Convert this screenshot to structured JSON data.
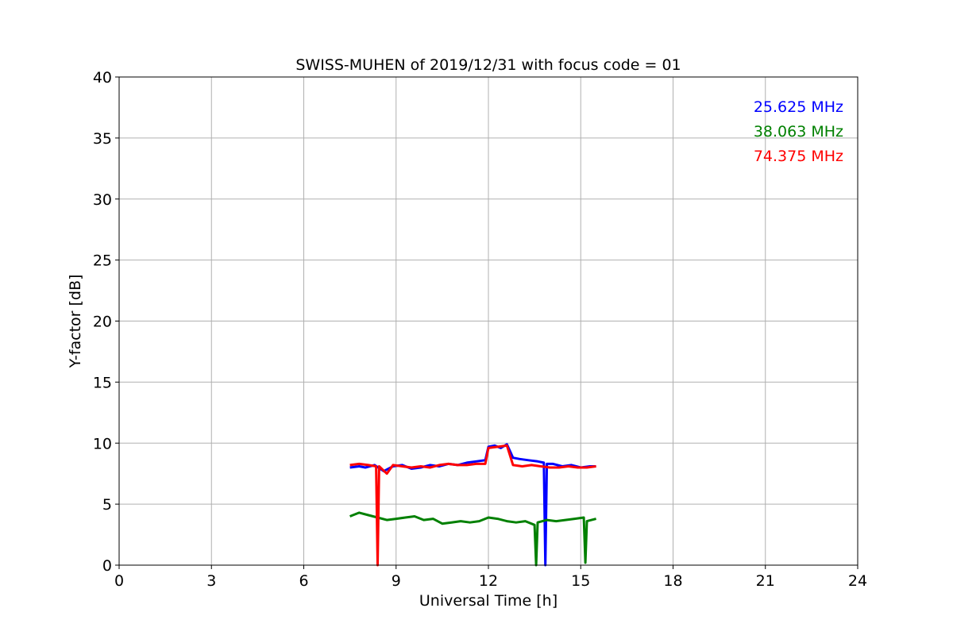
{
  "chart_data": {
    "type": "line",
    "title": "SWISS-MUHEN of 2019/12/31 with focus code = 01",
    "xlabel": "Universal Time [h]",
    "ylabel": "Y-factor [dB]",
    "xlim": [
      0,
      24
    ],
    "ylim": [
      0,
      40
    ],
    "x_ticks": [
      0,
      3,
      6,
      9,
      12,
      15,
      18,
      21,
      24
    ],
    "y_ticks": [
      0,
      5,
      10,
      15,
      20,
      25,
      30,
      35,
      40
    ],
    "x_tick_labels": [
      "0",
      "3",
      "6",
      "9",
      "12",
      "15",
      "18",
      "21",
      "24"
    ],
    "y_tick_labels": [
      "0",
      "5",
      "10",
      "15",
      "20",
      "25",
      "30",
      "35",
      "40"
    ],
    "grid": true,
    "legend_placement": "top-right",
    "series": [
      {
        "name": "25.625 MHz",
        "color": "#0000ff",
        "x": [
          7.5,
          7.8,
          8.0,
          8.3,
          8.6,
          8.9,
          9.2,
          9.5,
          9.8,
          10.1,
          10.4,
          10.7,
          11.0,
          11.3,
          11.6,
          11.9,
          12.0,
          12.2,
          12.4,
          12.6,
          12.8,
          13.0,
          13.3,
          13.6,
          13.8,
          13.85,
          13.9,
          14.1,
          14.4,
          14.7,
          15.0,
          15.3,
          15.5
        ],
        "values": [
          8.0,
          8.1,
          8.0,
          8.2,
          7.7,
          8.1,
          8.2,
          7.9,
          8.0,
          8.2,
          8.1,
          8.3,
          8.2,
          8.4,
          8.5,
          8.6,
          9.7,
          9.8,
          9.6,
          9.9,
          8.8,
          8.7,
          8.6,
          8.5,
          8.4,
          0.0,
          8.3,
          8.3,
          8.1,
          8.2,
          8.0,
          8.1,
          8.1
        ]
      },
      {
        "name": "38.063 MHz",
        "color": "#008000",
        "x": [
          7.5,
          7.8,
          8.1,
          8.4,
          8.7,
          9.0,
          9.3,
          9.6,
          9.9,
          10.2,
          10.5,
          10.8,
          11.1,
          11.4,
          11.7,
          12.0,
          12.3,
          12.6,
          12.9,
          13.2,
          13.5,
          13.55,
          13.6,
          13.9,
          14.2,
          14.5,
          14.8,
          15.1,
          15.15,
          15.2,
          15.5
        ],
        "values": [
          4.0,
          4.3,
          4.1,
          3.9,
          3.7,
          3.8,
          3.9,
          4.0,
          3.7,
          3.8,
          3.4,
          3.5,
          3.6,
          3.5,
          3.6,
          3.9,
          3.8,
          3.6,
          3.5,
          3.6,
          3.3,
          0.0,
          3.5,
          3.7,
          3.6,
          3.7,
          3.8,
          3.9,
          0.2,
          3.6,
          3.8
        ]
      },
      {
        "name": "74.375 MHz",
        "color": "#ff0000",
        "x": [
          7.5,
          7.8,
          8.1,
          8.35,
          8.4,
          8.45,
          8.7,
          8.9,
          9.2,
          9.5,
          9.8,
          10.1,
          10.4,
          10.7,
          11.0,
          11.3,
          11.6,
          11.9,
          12.0,
          12.3,
          12.6,
          12.8,
          13.1,
          13.4,
          13.7,
          14.0,
          14.3,
          14.6,
          14.9,
          15.2,
          15.5
        ],
        "values": [
          8.2,
          8.3,
          8.2,
          8.1,
          0.0,
          8.1,
          7.5,
          8.2,
          8.1,
          8.0,
          8.1,
          8.0,
          8.2,
          8.3,
          8.2,
          8.2,
          8.3,
          8.3,
          9.6,
          9.7,
          9.8,
          8.2,
          8.1,
          8.2,
          8.1,
          8.0,
          8.0,
          8.1,
          8.0,
          8.0,
          8.1
        ]
      }
    ]
  }
}
